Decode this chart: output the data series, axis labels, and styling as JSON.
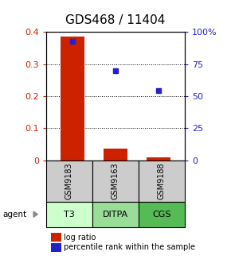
{
  "title": "GDS468 / 11404",
  "samples": [
    "GSM9183",
    "GSM9163",
    "GSM9188"
  ],
  "agents": [
    "T3",
    "DITPA",
    "CGS"
  ],
  "log_ratios": [
    0.385,
    0.035,
    0.01
  ],
  "percentile_ranks": [
    0.93,
    0.7,
    0.545
  ],
  "ylim_left": [
    0,
    0.4
  ],
  "ylim_right": [
    0,
    1.0
  ],
  "yticks_left": [
    0,
    0.1,
    0.2,
    0.3,
    0.4
  ],
  "yticks_right": [
    0,
    0.25,
    0.5,
    0.75,
    1.0
  ],
  "ytick_labels_left": [
    "0",
    "0.1",
    "0.2",
    "0.3",
    "0.4"
  ],
  "ytick_labels_right": [
    "0",
    "25",
    "50",
    "75",
    "100%"
  ],
  "bar_color": "#cc2200",
  "dot_color": "#2222cc",
  "sample_box_color": "#cccccc",
  "agent_colors": [
    "#ccffcc",
    "#99dd99",
    "#55bb55"
  ],
  "title_fontsize": 11,
  "tick_fontsize": 8,
  "legend_fontsize": 7,
  "sample_fontsize": 7,
  "agent_fontsize": 8,
  "bar_width": 0.55
}
